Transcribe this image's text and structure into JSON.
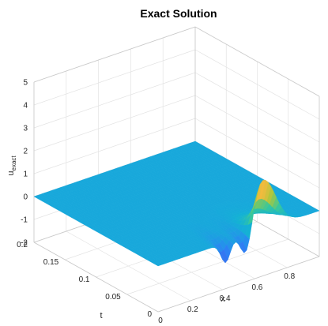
{
  "chart_data": {
    "type": "surface",
    "title": "Exact Solution",
    "xlabel": "x",
    "ylabel": "t",
    "zlabel_base": "u",
    "zlabel_sub": "exact",
    "xlim": [
      0,
      1
    ],
    "ylim": [
      0,
      0.2
    ],
    "zlim": [
      -2,
      5
    ],
    "xticks": [
      "0",
      "0.2",
      "0.4",
      "0.6",
      "0.8"
    ],
    "xtick_values": [
      0,
      0.2,
      0.4,
      0.6,
      0.8
    ],
    "yticks": [
      "0",
      "0.05",
      "0.1",
      "0.15",
      "0.2"
    ],
    "ytick_values": [
      0,
      0.05,
      0.1,
      0.15,
      0.2
    ],
    "zticks": [
      "-2",
      "-1",
      "0",
      "1",
      "2",
      "3",
      "4",
      "5"
    ],
    "ztick_values": [
      -2,
      -1,
      0,
      1,
      2,
      3,
      4,
      5
    ],
    "grid": true,
    "colormap": "parula",
    "surface_summary": {
      "flat_region": "u ≈ 0 for most of the (x, t) domain",
      "peak": {
        "x": 0.65,
        "t": 0,
        "u": 2.2
      },
      "trough": {
        "x": 0.55,
        "t": 0,
        "u": -1.6
      }
    },
    "colors": {
      "low": "#3e26a8",
      "mid": "#1fbfb9",
      "high": "#f9fb0e",
      "flat": "#2c83f5"
    }
  }
}
